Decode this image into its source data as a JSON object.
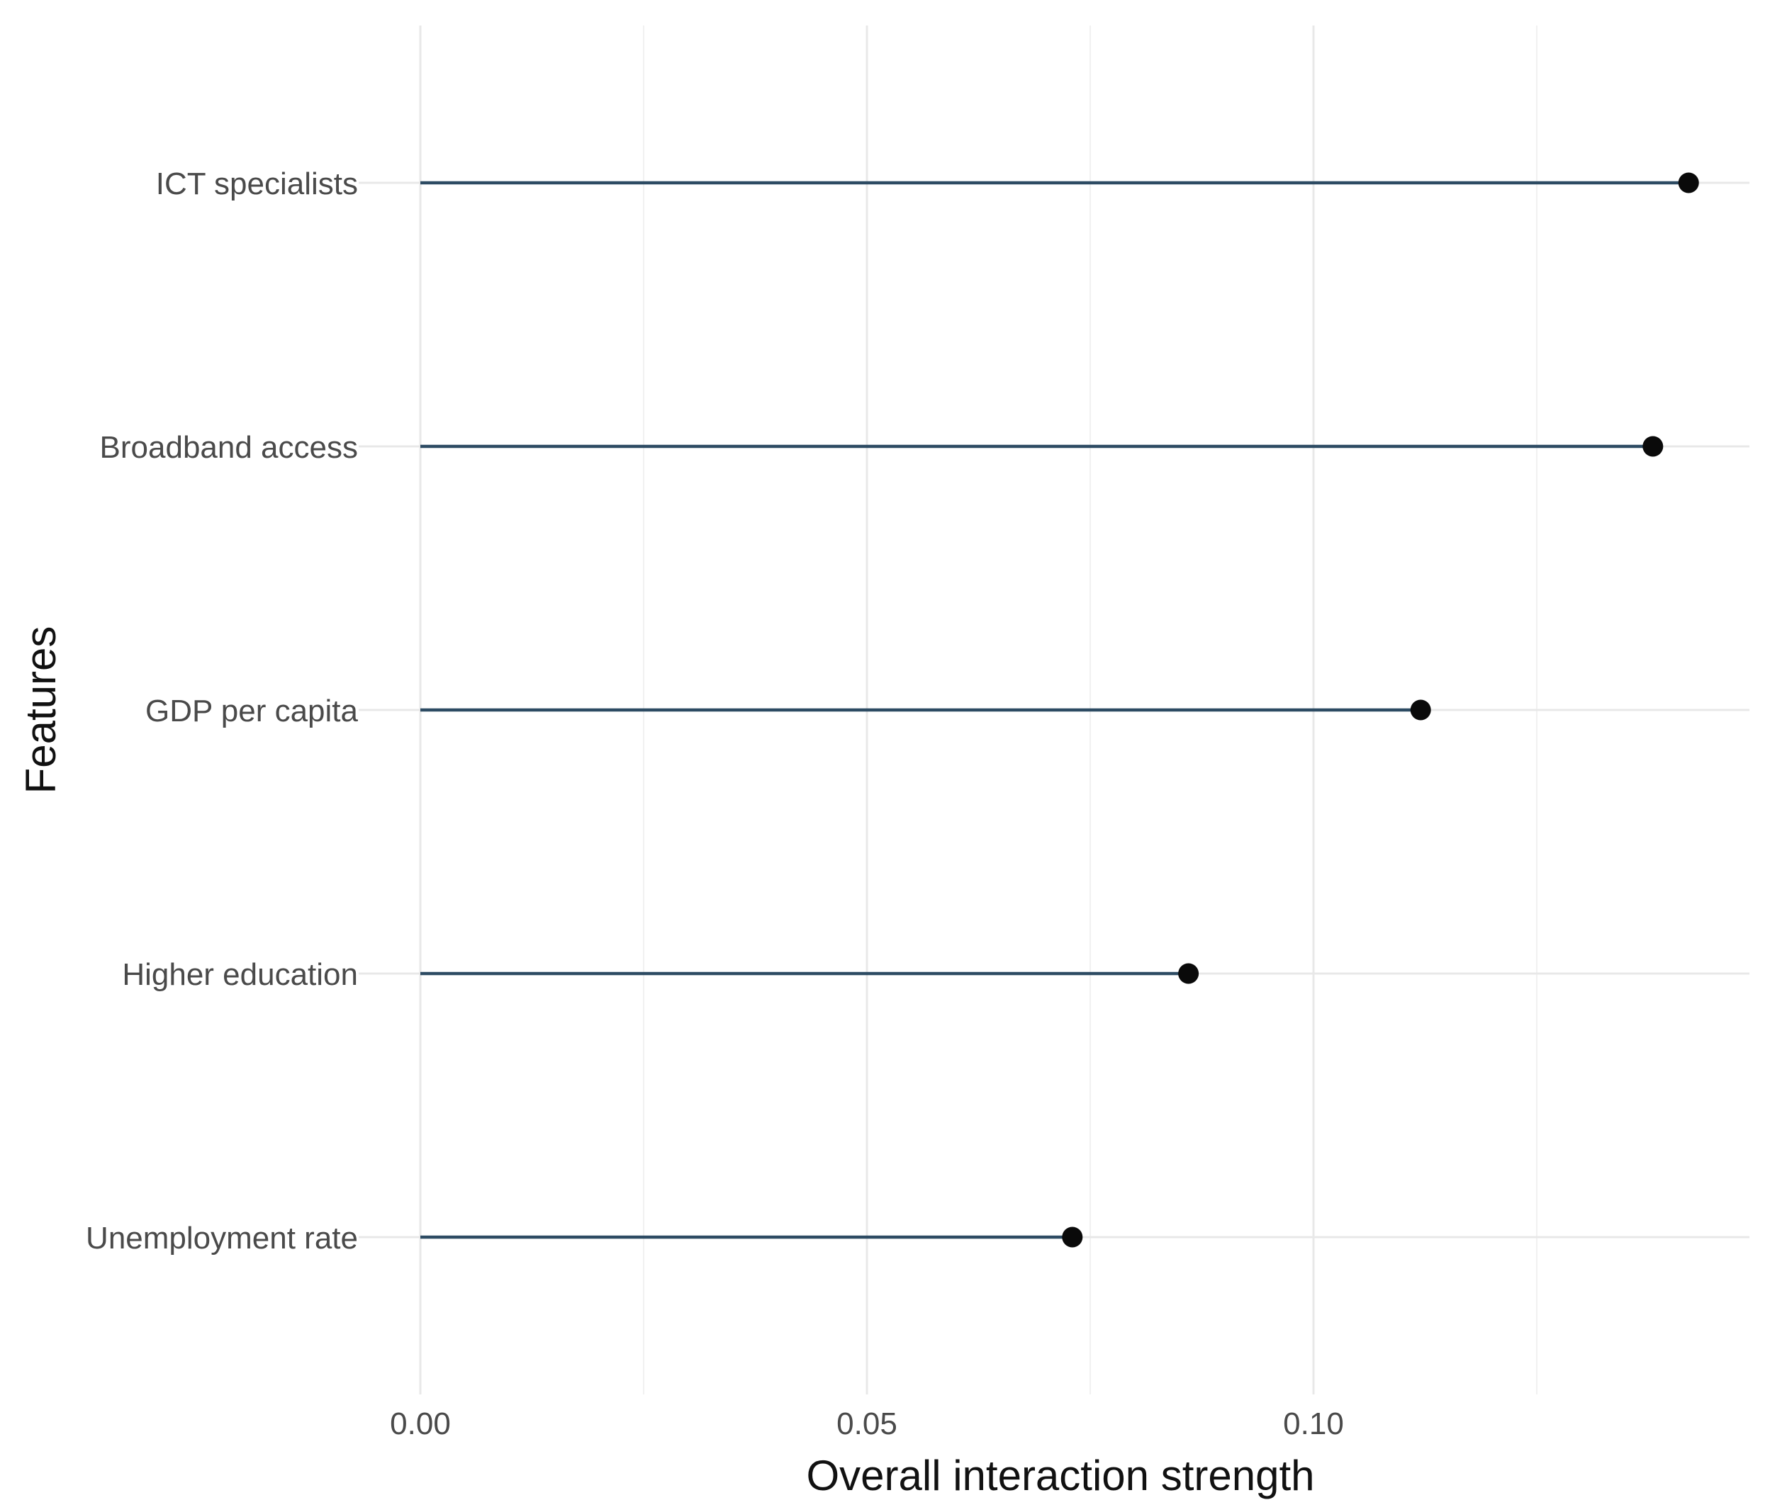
{
  "chart_data": {
    "type": "scatter",
    "variant": "lollipop-horizontal",
    "title": "",
    "xlabel": "Overall interaction strength",
    "ylabel": "Features",
    "categories": [
      "ICT specialists",
      "Broadband access",
      "GDP per capita",
      "Higher education",
      "Unemployment rate"
    ],
    "values": [
      0.142,
      0.138,
      0.112,
      0.086,
      0.073
    ],
    "x_major_ticks": [
      0.0,
      0.05,
      0.1
    ],
    "x_tick_labels": [
      "0.00",
      "0.05",
      "0.10"
    ],
    "x_minor_ticks": [
      0.025,
      0.075,
      0.125
    ],
    "xlim": [
      -0.007,
      0.149
    ],
    "grid": "vertical major+minor, horizontal major per category; no panel border; white background",
    "legend": "none",
    "colors": {
      "stem": "#2d4b63",
      "point": "#0a0a0a",
      "grid_major": "#e8e8e8",
      "grid_minor": "#f1f1f1",
      "axis_text": "#4a4a4a",
      "axis_title": "#111111",
      "background": "#ffffff"
    }
  }
}
